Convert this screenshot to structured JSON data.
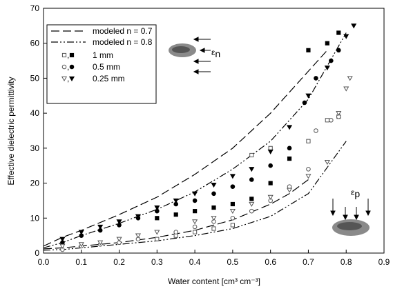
{
  "chart_data": {
    "type": "scatter",
    "xlabel": "Water content [cm³ cm⁻³]",
    "ylabel": "Effective dielectric permittivity",
    "xlim": [
      0,
      0.9
    ],
    "ylim": [
      0,
      70
    ],
    "xticks": [
      {
        "value": 0,
        "label": "0.0"
      },
      0.1,
      0.2,
      0.3,
      0.4,
      0.5,
      0.6,
      0.7,
      0.8,
      0.9
    ],
    "yticks": [
      0,
      10,
      20,
      30,
      40,
      50,
      60,
      70
    ],
    "lines": [
      {
        "name": "modeled n = 0.7",
        "color": "#000000",
        "dash": "12,5",
        "curves": [
          {
            "x": [
              0,
              0.05,
              0.1,
              0.2,
              0.3,
              0.4,
              0.5,
              0.6,
              0.7,
              0.75
            ],
            "y": [
              2,
              4.5,
              6.5,
              11,
              16,
              22.5,
              30,
              40,
              52,
              58
            ]
          },
          {
            "x": [
              0,
              0.05,
              0.1,
              0.2,
              0.3,
              0.4,
              0.5,
              0.6,
              0.65,
              0.7
            ],
            "y": [
              1.2,
              1.5,
              2,
              3,
              4.5,
              6.5,
              9.5,
              14,
              17,
              21
            ]
          }
        ]
      },
      {
        "name": "modeled n = 0.8",
        "color": "#000000",
        "dash": "10,3,2,3,2,3",
        "curves": [
          {
            "x": [
              0,
              0.05,
              0.1,
              0.2,
              0.3,
              0.4,
              0.5,
              0.6,
              0.7,
              0.8
            ],
            "y": [
              1.5,
              3,
              5,
              8.5,
              12.5,
              17.5,
              24,
              32,
              44,
              63
            ]
          },
          {
            "x": [
              0,
              0.05,
              0.1,
              0.2,
              0.3,
              0.4,
              0.5,
              0.6,
              0.7,
              0.8
            ],
            "y": [
              0.8,
              1,
              1.5,
              2.5,
              3.5,
              5,
              7,
              10.5,
              17,
              32
            ]
          }
        ]
      }
    ],
    "groups": [
      {
        "name": "1 mm",
        "marker": "square",
        "open": {
          "x": [
            0.3,
            0.35,
            0.4,
            0.45,
            0.5,
            0.55,
            0.6,
            0.7,
            0.75,
            0.78
          ],
          "y": [
            4,
            5,
            6,
            7,
            8,
            28,
            30,
            32,
            38,
            39
          ]
        },
        "filled": {
          "x": [
            0.3,
            0.35,
            0.4,
            0.45,
            0.5,
            0.55,
            0.6,
            0.65,
            0.7,
            0.75,
            0.78
          ],
          "y": [
            10,
            11,
            12,
            13,
            14,
            15.5,
            20,
            27,
            58,
            60,
            63
          ]
        }
      },
      {
        "name": "0.5 mm",
        "marker": "circle",
        "open": {
          "x": [
            0.05,
            0.1,
            0.15,
            0.2,
            0.25,
            0.35,
            0.4,
            0.45,
            0.5,
            0.55,
            0.6,
            0.65,
            0.7,
            0.72,
            0.76,
            0.78
          ],
          "y": [
            1,
            2,
            2.5,
            3,
            4,
            6,
            7.5,
            9,
            10,
            12,
            15,
            19,
            24,
            35,
            38,
            39
          ]
        },
        "filled": {
          "x": [
            0.05,
            0.1,
            0.15,
            0.2,
            0.25,
            0.3,
            0.35,
            0.4,
            0.45,
            0.5,
            0.55,
            0.6,
            0.65,
            0.69,
            0.72,
            0.76,
            0.78
          ],
          "y": [
            3,
            5,
            6.5,
            8,
            10,
            12,
            14,
            15,
            17,
            19,
            21,
            25,
            30,
            43,
            50,
            55,
            58
          ]
        }
      },
      {
        "name": "0.25 mm",
        "marker": "triangle",
        "open": {
          "x": [
            0.05,
            0.1,
            0.15,
            0.2,
            0.25,
            0.3,
            0.4,
            0.45,
            0.5,
            0.55,
            0.6,
            0.65,
            0.7,
            0.75,
            0.78,
            0.8,
            0.81
          ],
          "y": [
            2,
            2.5,
            3,
            4,
            5,
            6,
            9,
            10,
            12,
            14,
            16,
            18,
            22,
            26,
            40,
            47,
            50
          ]
        },
        "filled": {
          "x": [
            0.05,
            0.1,
            0.15,
            0.2,
            0.25,
            0.3,
            0.35,
            0.4,
            0.45,
            0.5,
            0.55,
            0.6,
            0.65,
            0.7,
            0.75,
            0.8,
            0.82
          ],
          "y": [
            4,
            6,
            7.5,
            9,
            10.5,
            13,
            15,
            17,
            19.5,
            22,
            24,
            29,
            36,
            45,
            53,
            62,
            65
          ]
        }
      }
    ],
    "annotations": [
      {
        "symbol": "ε",
        "sub": "n"
      },
      {
        "symbol": "ε",
        "sub": "p"
      }
    ]
  }
}
